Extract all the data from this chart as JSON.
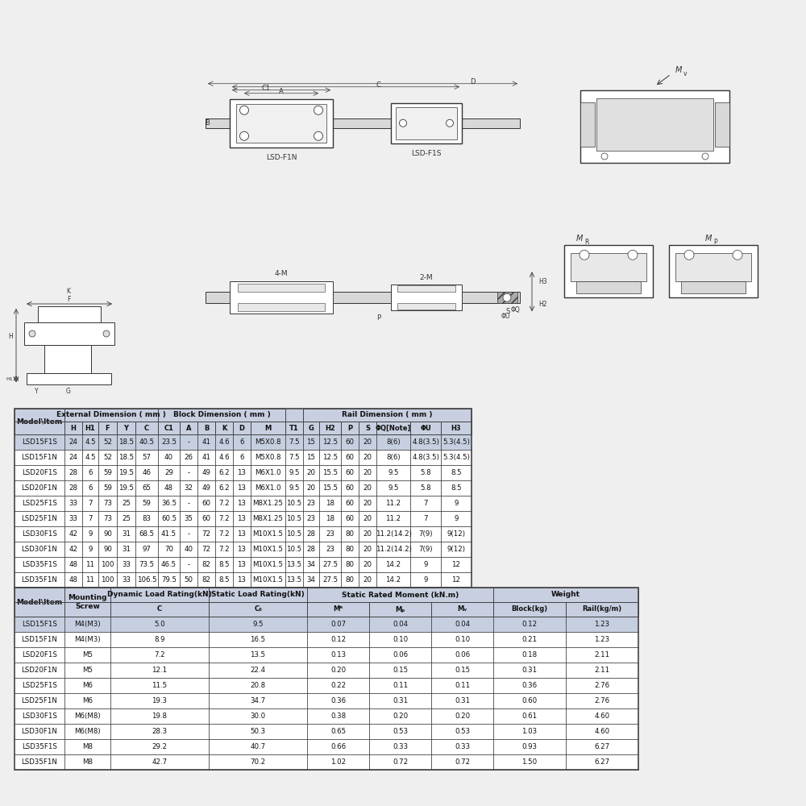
{
  "bg_color": "#efefef",
  "table_bg": "#ffffff",
  "header_bg": "#c8cfe0",
  "highlight_row_bg": "#c5cfe0",
  "border_color": "#444444",
  "text_color": "#111111",
  "diagram_bg": "#efefef",
  "top_table_subheaders": [
    "Model\\Item",
    "H",
    "H1",
    "F",
    "Y",
    "C",
    "C1",
    "A",
    "B",
    "K",
    "D",
    "M",
    "T1",
    "G",
    "H2",
    "P",
    "S",
    "ΦQ[Note]",
    "ΦU",
    "H3"
  ],
  "top_table_rows": [
    [
      "LSD15F1S",
      "24",
      "4.5",
      "52",
      "18.5",
      "40.5",
      "23.5",
      "-",
      "41",
      "4.6",
      "6",
      "M5X0.8",
      "7.5",
      "15",
      "12.5",
      "60",
      "20",
      "8(6)",
      "4.8(3.5)",
      "5.3(4.5)"
    ],
    [
      "LSD15F1N",
      "24",
      "4.5",
      "52",
      "18.5",
      "57",
      "40",
      "26",
      "41",
      "4.6",
      "6",
      "M5X0.8",
      "7.5",
      "15",
      "12.5",
      "60",
      "20",
      "8(6)",
      "4.8(3.5)",
      "5.3(4.5)"
    ],
    [
      "LSD20F1S",
      "28",
      "6",
      "59",
      "19.5",
      "46",
      "29",
      "-",
      "49",
      "6.2",
      "13",
      "M6X1.0",
      "9.5",
      "20",
      "15.5",
      "60",
      "20",
      "9.5",
      "5.8",
      "8.5"
    ],
    [
      "LSD20F1N",
      "28",
      "6",
      "59",
      "19.5",
      "65",
      "48",
      "32",
      "49",
      "6.2",
      "13",
      "M6X1.0",
      "9.5",
      "20",
      "15.5",
      "60",
      "20",
      "9.5",
      "5.8",
      "8.5"
    ],
    [
      "LSD25F1S",
      "33",
      "7",
      "73",
      "25",
      "59",
      "36.5",
      "-",
      "60",
      "7.2",
      "13",
      "M8X1.25",
      "10.5",
      "23",
      "18",
      "60",
      "20",
      "11.2",
      "7",
      "9"
    ],
    [
      "LSD25F1N",
      "33",
      "7",
      "73",
      "25",
      "83",
      "60.5",
      "35",
      "60",
      "7.2",
      "13",
      "M8X1.25",
      "10.5",
      "23",
      "18",
      "60",
      "20",
      "11.2",
      "7",
      "9"
    ],
    [
      "LSD30F1S",
      "42",
      "9",
      "90",
      "31",
      "68.5",
      "41.5",
      "-",
      "72",
      "7.2",
      "13",
      "M10X1.5",
      "10.5",
      "28",
      "23",
      "80",
      "20",
      "11.2(14.2)",
      "7(9)",
      "9(12)"
    ],
    [
      "LSD30F1N",
      "42",
      "9",
      "90",
      "31",
      "97",
      "70",
      "40",
      "72",
      "7.2",
      "13",
      "M10X1.5",
      "10.5",
      "28",
      "23",
      "80",
      "20",
      "11.2(14.2)",
      "7(9)",
      "9(12)"
    ],
    [
      "LSD35F1S",
      "48",
      "11",
      "100",
      "33",
      "73.5",
      "46.5",
      "-",
      "82",
      "8.5",
      "13",
      "M10X1.5",
      "13.5",
      "34",
      "27.5",
      "80",
      "20",
      "14.2",
      "9",
      "12"
    ],
    [
      "LSD35F1N",
      "48",
      "11",
      "100",
      "33",
      "106.5",
      "79.5",
      "50",
      "82",
      "8.5",
      "13",
      "M10X1.5",
      "13.5",
      "34",
      "27.5",
      "80",
      "20",
      "14.2",
      "9",
      "12"
    ]
  ],
  "bot_table_subheaders": [
    "Model\\Item",
    "Mounting\nScrew",
    "C",
    "C₀",
    "Mᴿ",
    "Mₚ",
    "Mᵥ",
    "Block(kg)",
    "Rail(kg/m)"
  ],
  "bot_table_rows": [
    [
      "LSD15F1S",
      "M4(M3)",
      "5.0",
      "9.5",
      "0.07",
      "0.04",
      "0.04",
      "0.12",
      "1.23"
    ],
    [
      "LSD15F1N",
      "M4(M3)",
      "8.9",
      "16.5",
      "0.12",
      "0.10",
      "0.10",
      "0.21",
      "1.23"
    ],
    [
      "LSD20F1S",
      "M5",
      "7.2",
      "13.5",
      "0.13",
      "0.06",
      "0.06",
      "0.18",
      "2.11"
    ],
    [
      "LSD20F1N",
      "M5",
      "12.1",
      "22.4",
      "0.20",
      "0.15",
      "0.15",
      "0.31",
      "2.11"
    ],
    [
      "LSD25F1S",
      "M6",
      "11.5",
      "20.8",
      "0.22",
      "0.11",
      "0.11",
      "0.36",
      "2.76"
    ],
    [
      "LSD25F1N",
      "M6",
      "19.3",
      "34.7",
      "0.36",
      "0.31",
      "0.31",
      "0.60",
      "2.76"
    ],
    [
      "LSD30F1S",
      "M6(M8)",
      "19.8",
      "30.0",
      "0.38",
      "0.20",
      "0.20",
      "0.61",
      "4.60"
    ],
    [
      "LSD30F1N",
      "M6(M8)",
      "28.3",
      "50.3",
      "0.65",
      "0.53",
      "0.53",
      "1.03",
      "4.60"
    ],
    [
      "LSD35F1S",
      "M8",
      "29.2",
      "40.7",
      "0.66",
      "0.33",
      "0.33",
      "0.93",
      "6.27"
    ],
    [
      "LSD35F1N",
      "M8",
      "42.7",
      "70.2",
      "1.02",
      "0.72",
      "0.72",
      "1.50",
      "6.27"
    ]
  ],
  "col_widths_t1": [
    62,
    22,
    20,
    23,
    23,
    28,
    27,
    22,
    22,
    22,
    22,
    43,
    22,
    20,
    27,
    22,
    22,
    42,
    38,
    38
  ],
  "col_widths_t2": [
    62,
    57,
    122,
    122,
    77,
    77,
    77,
    90,
    90
  ],
  "t1_group_spans": [
    [
      0,
      1,
      "Model\\Item"
    ],
    [
      1,
      6,
      "External Dimension ( mm )"
    ],
    [
      6,
      12,
      "Block Dimension ( mm )"
    ],
    [
      13,
      20,
      "Rail Dimension ( mm )"
    ]
  ],
  "t2_group_spans": [
    [
      0,
      1,
      "Model\\Item"
    ],
    [
      1,
      2,
      "Mounting\nScrew"
    ],
    [
      2,
      3,
      "Dynamic Load Rating(kN)"
    ],
    [
      3,
      4,
      "Static Load Rating(kN)"
    ],
    [
      4,
      7,
      "Static Rated Moment (kN.m)"
    ],
    [
      7,
      9,
      "Weight"
    ]
  ]
}
